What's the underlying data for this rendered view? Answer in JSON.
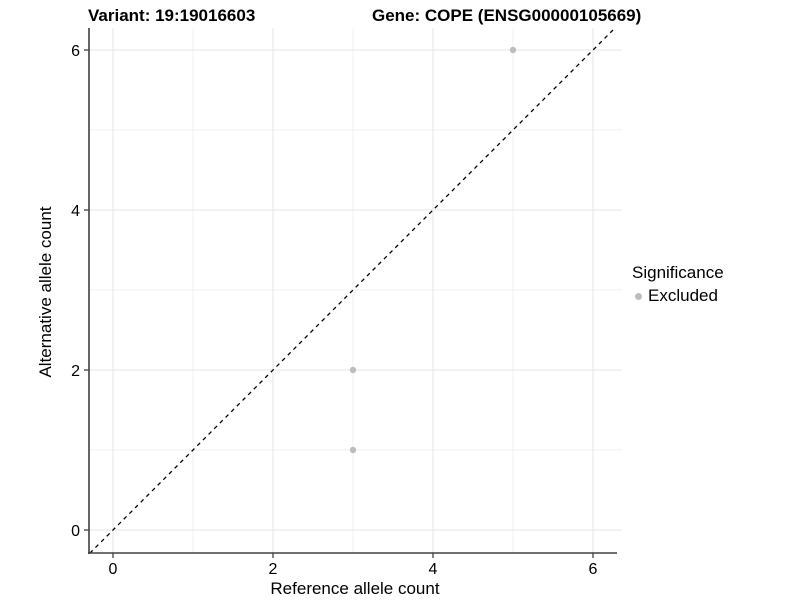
{
  "header": {
    "variant_title": "Variant: 19:19016603",
    "gene_title": "Gene: COPE (ENSG00000105669)"
  },
  "chart_data": {
    "type": "scatter",
    "title_left": "Variant: 19:19016603",
    "title_right": "Gene: COPE (ENSG00000105669)",
    "xlabel": "Reference allele count",
    "ylabel": "Alternative allele count",
    "xlim": [
      -0.3,
      6.35
    ],
    "ylim": [
      -0.3,
      6.25
    ],
    "x_major_ticks": [
      0,
      2,
      4,
      6
    ],
    "y_major_ticks": [
      0,
      2,
      4,
      6
    ],
    "x_minor_ticks": [
      1,
      3,
      5
    ],
    "y_minor_ticks": [
      1,
      3,
      5
    ],
    "grid": "major+minor",
    "identity_line": {
      "style": "dashed",
      "slope": 1,
      "intercept": 0,
      "color": "#000000"
    },
    "series": [
      {
        "name": "Excluded",
        "color": "#bdbdbd",
        "points": [
          {
            "x": 5,
            "y": 6
          },
          {
            "x": 3,
            "y": 2
          },
          {
            "x": 3,
            "y": 1
          }
        ]
      }
    ],
    "legend": {
      "title": "Significance",
      "position": "right",
      "items": [
        {
          "label": "Excluded",
          "color": "#bdbdbd"
        }
      ]
    }
  },
  "colors": {
    "background": "#ffffff",
    "grid_major": "#e6e6e6",
    "grid_minor": "#f2f2f2",
    "axis": "#404040",
    "text": "#000000",
    "point": "#bdbdbd"
  }
}
